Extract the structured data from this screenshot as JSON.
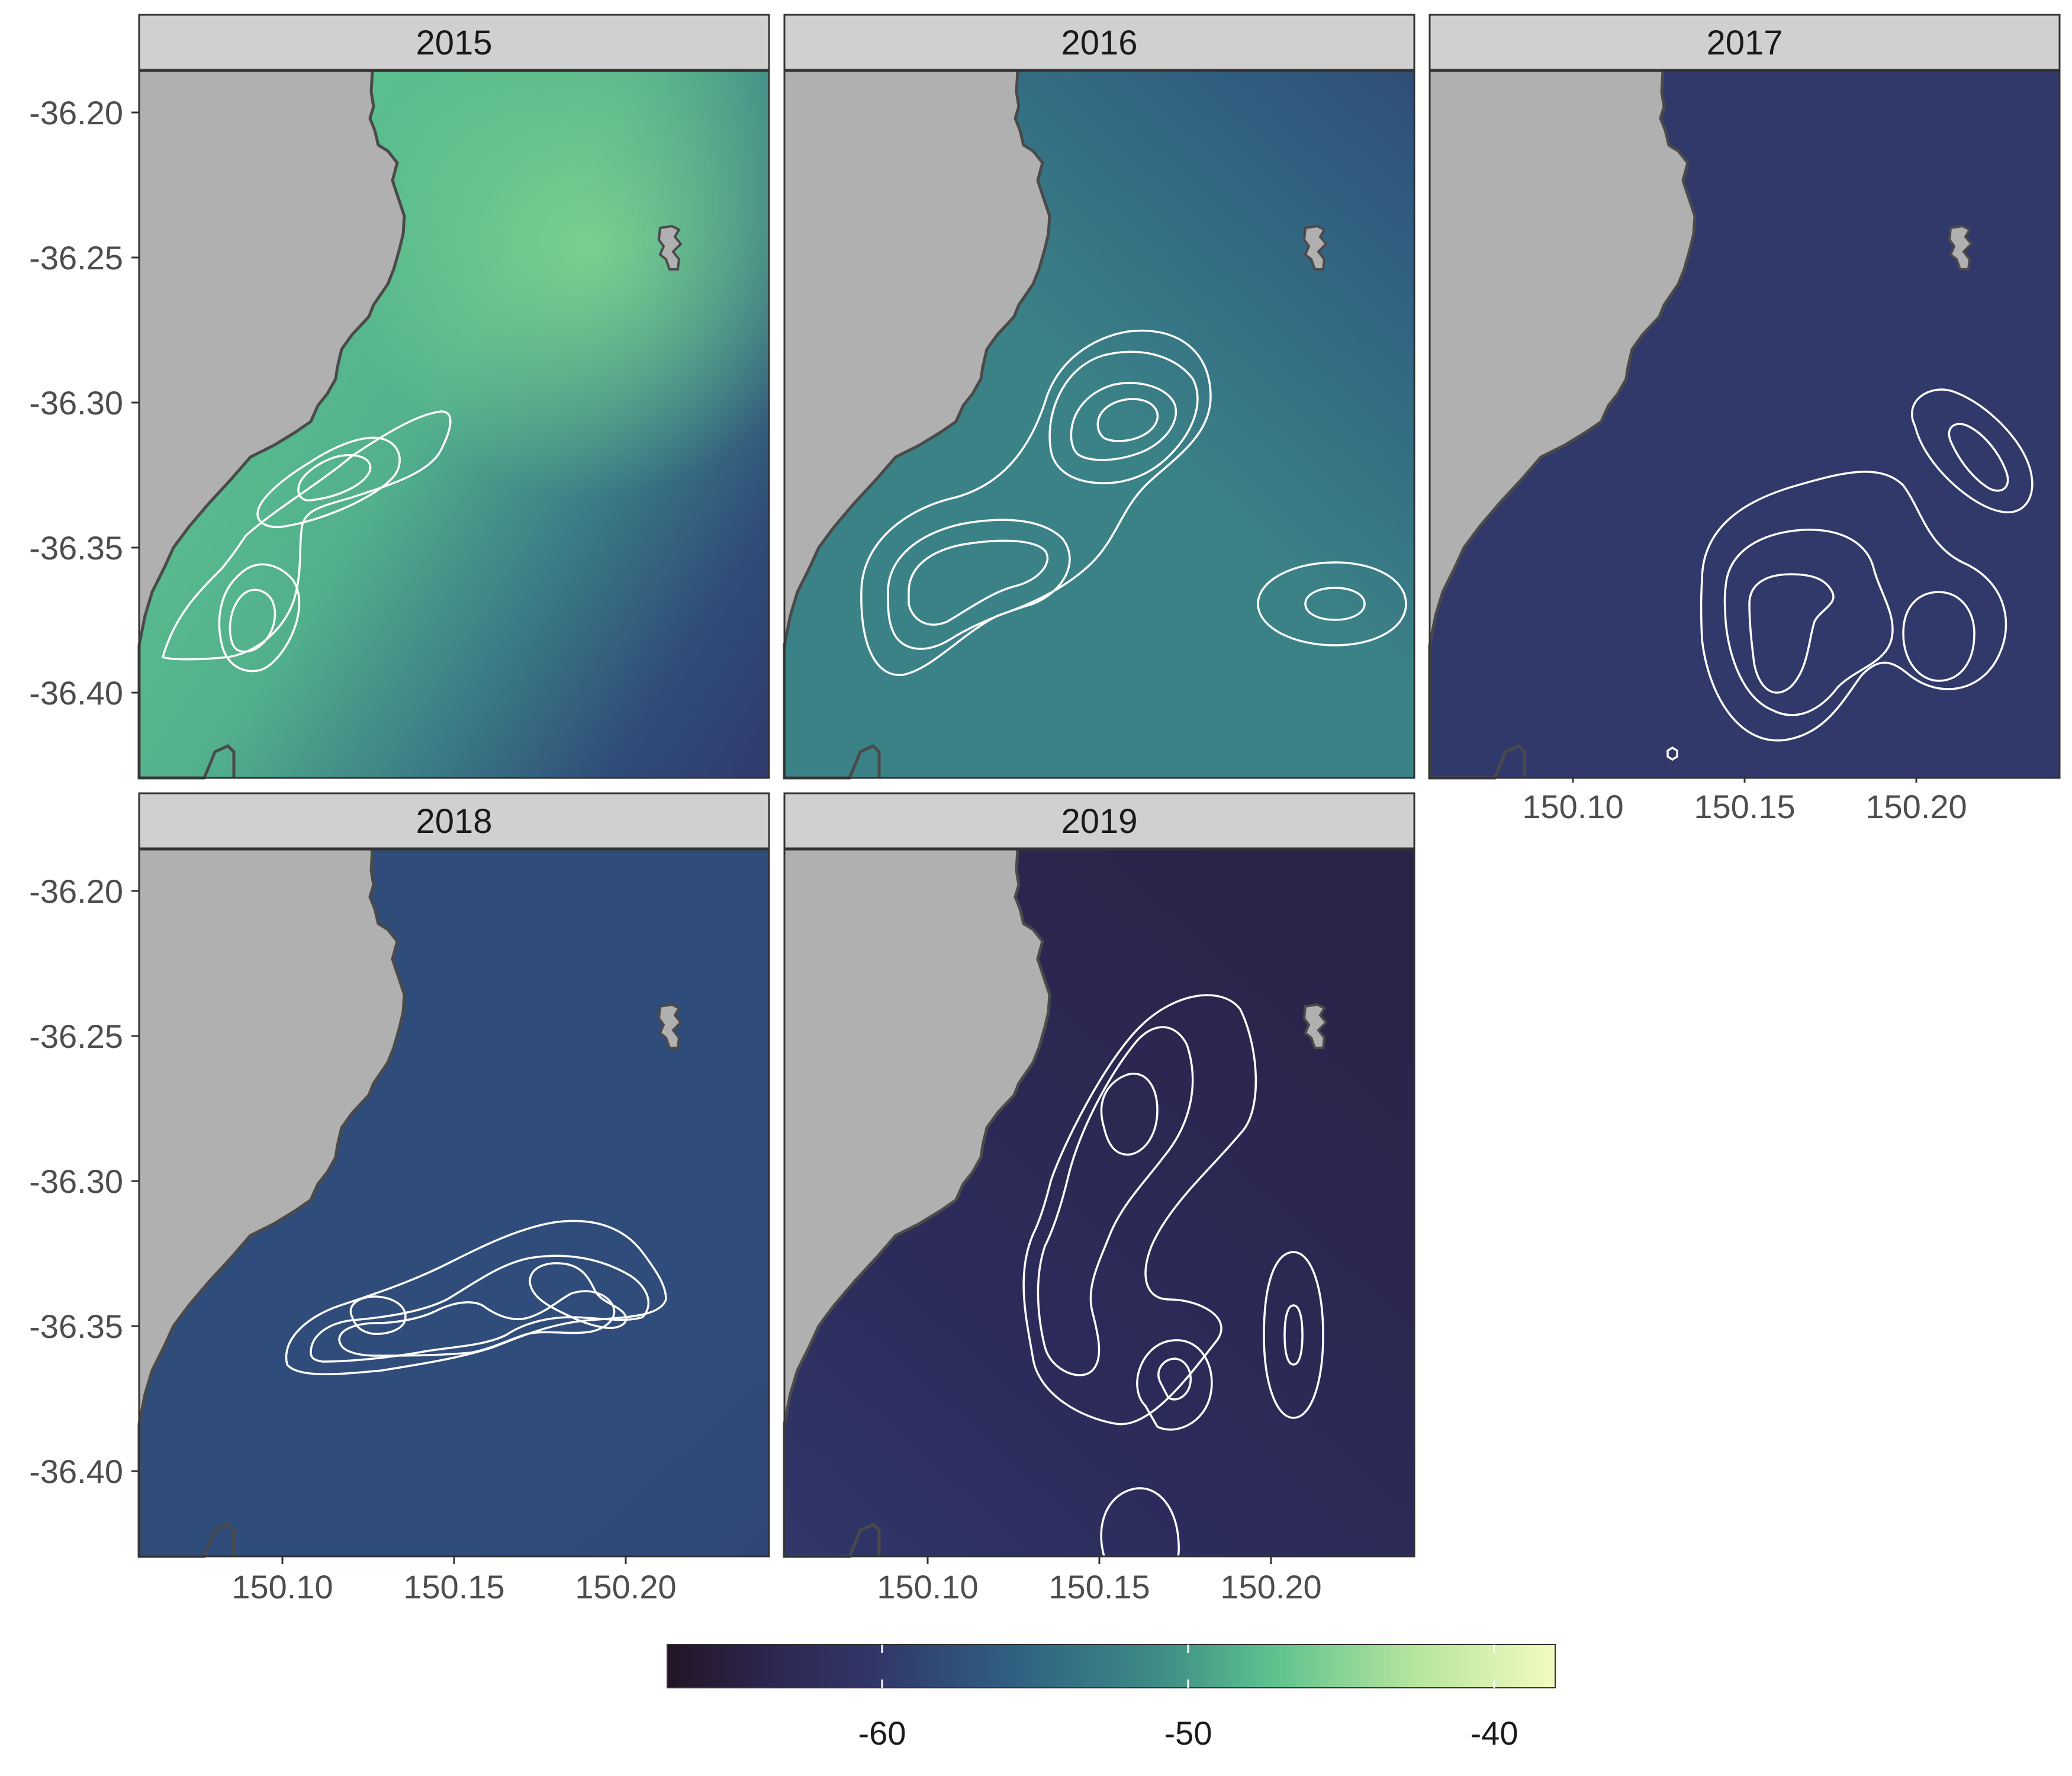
{
  "panels": [
    {
      "year": "2015",
      "field_peak": -46
    },
    {
      "year": "2016",
      "field_peak": -51
    },
    {
      "year": "2017",
      "field_peak": -61
    },
    {
      "year": "2018",
      "field_peak": -58
    },
    {
      "year": "2019",
      "field_peak": -61
    }
  ],
  "axes": {
    "x_ticks": [
      "150.10",
      "150.15",
      "150.20"
    ],
    "y_ticks": [
      "-36.20",
      "-36.25",
      "-36.30",
      "-36.35",
      "-36.40"
    ]
  },
  "legend": {
    "ticks": [
      "-60",
      "-50",
      "-40"
    ],
    "range": [
      -67,
      -38
    ],
    "palette": [
      "#231525",
      "#2d2651",
      "#31386a",
      "#2f5d80",
      "#3d8b86",
      "#5cc18e",
      "#b5e59e",
      "#f3fbbf"
    ]
  },
  "colors": {
    "land": "#b0b0b0",
    "coast": "#4a4a4a",
    "contour": "#ffffff",
    "strip_bg": "#d0d0d0"
  }
}
